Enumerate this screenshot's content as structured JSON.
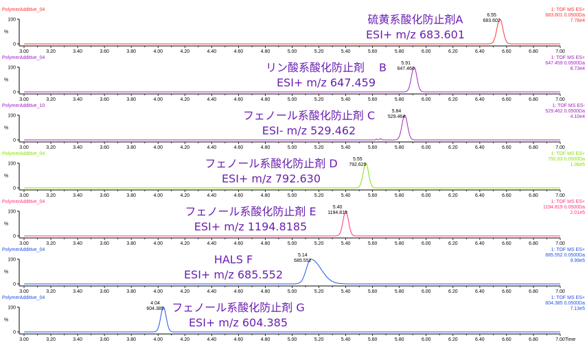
{
  "chart_data": {
    "type": "line",
    "x_axis": {
      "range": [
        3.0,
        7.0
      ],
      "ticks": [
        "3.00",
        "3.20",
        "3.40",
        "3.60",
        "3.80",
        "4.00",
        "4.20",
        "4.40",
        "4.60",
        "4.80",
        "5.00",
        "5.20",
        "5.40",
        "5.60",
        "5.80",
        "6.00",
        "6.20",
        "6.40",
        "6.60",
        "6.80",
        "7.00"
      ],
      "label": "Time"
    },
    "y_axis": {
      "ticks": [
        "100",
        "%",
        "0"
      ],
      "range": [
        0,
        100
      ]
    },
    "panels": [
      {
        "sample": "PolymerAdditive_04",
        "channel": "1: TOF MS ES+",
        "mass_window": "683.601 0.0500Da",
        "intensity": "7.78e4",
        "color": "#ff3030",
        "peak": {
          "rt": 6.55,
          "rt_label": "6.55",
          "mz_label": "683.602",
          "width": 0.05
        },
        "noise": [],
        "annotation": [
          "硫黄系酸化防止剤A",
          "ESI+ m/z 683.601"
        ]
      },
      {
        "sample": "PolymerAdditive_04",
        "channel": "1: TOF MS ES+",
        "mass_window": "647.459 0.0500Da",
        "intensity": "8.73e4",
        "color": "#a020c0",
        "peak": {
          "rt": 5.91,
          "rt_label": "5.91",
          "mz_label": "647.460",
          "width": 0.045
        },
        "noise": [],
        "annotation": [
          "リン酸系酸化防止剤　 B",
          "ESI+ m/z 647.459"
        ]
      },
      {
        "sample": "PolymerAdditive_10",
        "channel": "1: TOF MS ES-",
        "mass_window": "529.462 0.0500Da",
        "intensity": "4.10e4",
        "color": "#a020c0",
        "peak": {
          "rt": 5.84,
          "rt_label": "5.84",
          "mz_label": "529.464",
          "width": 0.045
        },
        "noise": [
          [
            5.63,
            0.03
          ],
          [
            5.66,
            0.05
          ]
        ],
        "annotation": [
          "フェノール系酸化防止剤 C",
          "ESI- m/z 529.462"
        ]
      },
      {
        "sample": "PolymerAdditive_04",
        "channel": "1: TOF MS ES+",
        "mass_window": "792.63 0.0500Da",
        "intensity": "1.06e5",
        "color": "#86e000",
        "peak": {
          "rt": 5.55,
          "rt_label": "5.55",
          "mz_label": "792.629",
          "width": 0.045
        },
        "noise": [],
        "annotation": [
          "フェノール系酸化防止剤 D",
          "ESI+ m/z 792.630"
        ]
      },
      {
        "sample": "PolymerAdditive_04",
        "channel": "1: TOF MS ES+",
        "mass_window": "1194.819 0.0500Da",
        "intensity": "2.01e5",
        "color": "#ff3080",
        "peak": {
          "rt": 5.4,
          "rt_label": "5.40",
          "mz_label": "1194.819",
          "width": 0.045
        },
        "noise": [],
        "annotation": [
          "フェノール系酸化防止剤 E",
          "ESI+ m/z 1194.8185"
        ]
      },
      {
        "sample": "PolymerAdditive_04",
        "channel": "1: TOF MS ES+",
        "mass_window": "685.552 0.0500Da",
        "intensity": "9.99e5",
        "color": "#2050e0",
        "peak": {
          "rt": 5.14,
          "rt_label": "5.14",
          "mz_label": "685.552",
          "width": 0.075
        },
        "noise": [],
        "annotation": [
          "HALS F",
          "ESI+ m/z 685.552"
        ]
      },
      {
        "sample": "PolymerAdditive_04",
        "channel": "1: TOF MS ES+",
        "mass_window": "604.385 0.0500Da",
        "intensity": "7.13e5",
        "color": "#2050e0",
        "peak": {
          "rt": 4.04,
          "rt_label": "4.04",
          "mz_label": "604.385",
          "width": 0.045
        },
        "noise": [],
        "annotation": [
          "フェノール系酸化防止剤 G",
          "ESI+ m/z 604.385"
        ]
      }
    ]
  }
}
